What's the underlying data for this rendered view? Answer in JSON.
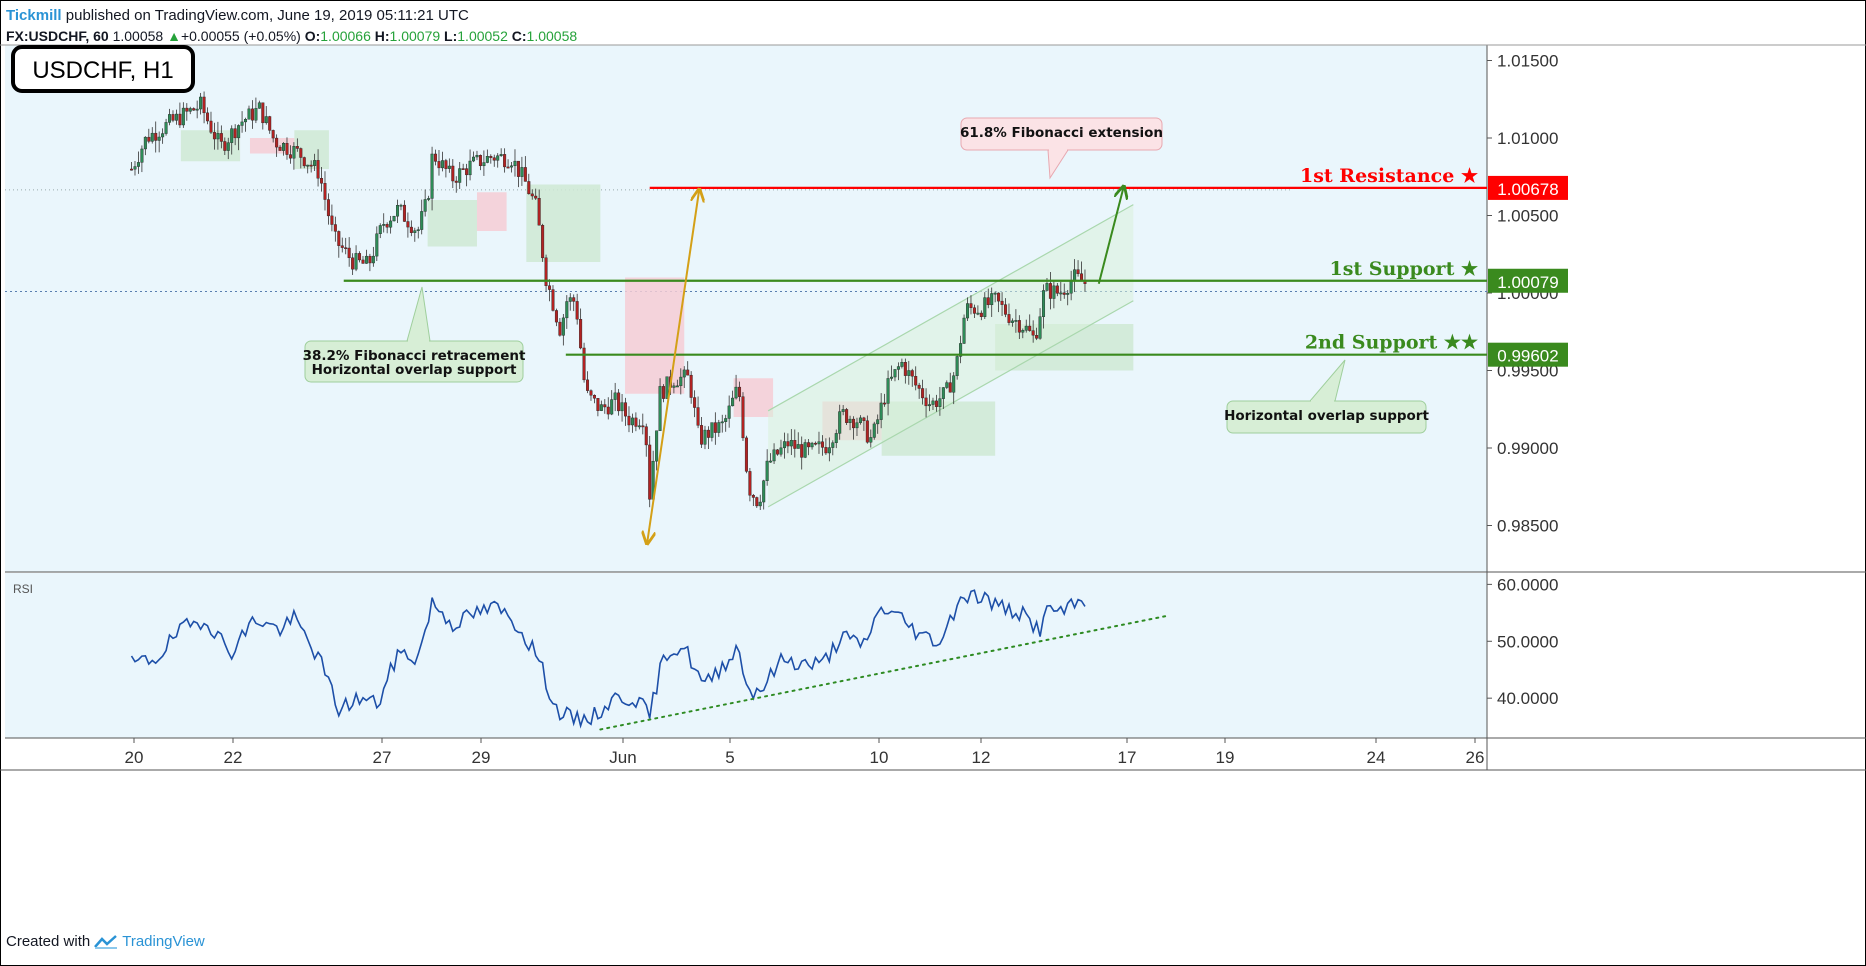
{
  "header": {
    "publisher": "Tickmill",
    "published_text": "published on TradingView.com, June 19, 2019 05:11:21 UTC",
    "symbol": "FX:USDCHF, 60",
    "last": "1.00058",
    "change": "+0.00055 (+0.05%)",
    "o_label": "O:",
    "o_value": "1.00066",
    "h_label": "H:",
    "h_value": "1.00079",
    "l_label": "L:",
    "l_value": "1.00052",
    "c_label": "C:",
    "c_value": "1.00058"
  },
  "footer": {
    "created_with": "Created with",
    "brand": "TradingView"
  },
  "colors": {
    "plot_bg": "#eaf6fc",
    "candle_up": "#2e8b57",
    "candle_down": "#b22222",
    "resistance": "#ff0000",
    "support": "#3a8a1e",
    "fib_arrow": "#d4a017",
    "rsi_line": "#1d4fa8",
    "rsi_trend": "#2e8b22",
    "cloud_bear": "#f6cdd5",
    "cloud_bull": "#cfe9d3"
  },
  "chart_data": {
    "type": "candlestick",
    "title": "USDCHF, H1",
    "x_ticks": [
      "20",
      "22",
      "27",
      "29",
      "Jun",
      "5",
      "10",
      "12",
      "17",
      "19",
      "24",
      "26"
    ],
    "y_ticks": [
      "1.01500",
      "1.01000",
      "1.00500",
      "1.00000",
      "0.99500",
      "0.99000",
      "0.98500"
    ],
    "ylim": [
      0.982,
      1.016
    ],
    "price_path": [
      {
        "t": 0,
        "p": 1.008
      },
      {
        "t": 0.3,
        "p": 1.01
      },
      {
        "t": 0.9,
        "p": 1.0112
      },
      {
        "t": 1.4,
        "p": 1.0121
      },
      {
        "t": 1.8,
        "p": 1.0094
      },
      {
        "t": 2.2,
        "p": 1.011
      },
      {
        "t": 2.6,
        "p": 1.0119
      },
      {
        "t": 2.9,
        "p": 1.0098
      },
      {
        "t": 3.4,
        "p": 1.009
      },
      {
        "t": 3.8,
        "p": 1.0078
      },
      {
        "t": 4.1,
        "p": 1.0035
      },
      {
        "t": 4.5,
        "p": 1.002
      },
      {
        "t": 4.8,
        "p": 1.0018
      },
      {
        "t": 5.1,
        "p": 1.0045
      },
      {
        "t": 5.4,
        "p": 1.0054
      },
      {
        "t": 5.8,
        "p": 1.004
      },
      {
        "t": 6.0,
        "p": 1.006
      },
      {
        "t": 6.1,
        "p": 1.009
      },
      {
        "t": 6.5,
        "p": 1.0074
      },
      {
        "t": 6.9,
        "p": 1.0083
      },
      {
        "t": 7.3,
        "p": 1.0088
      },
      {
        "t": 7.7,
        "p": 1.0087
      },
      {
        "t": 8.0,
        "p": 1.007
      },
      {
        "t": 8.2,
        "p": 1.0055
      },
      {
        "t": 8.4,
        "p": 1.001
      },
      {
        "t": 8.7,
        "p": 0.9975
      },
      {
        "t": 8.8,
        "p": 0.9995
      },
      {
        "t": 9.0,
        "p": 0.9995
      },
      {
        "t": 9.2,
        "p": 0.9935
      },
      {
        "t": 9.5,
        "p": 0.9925
      },
      {
        "t": 9.8,
        "p": 0.993
      },
      {
        "t": 10.1,
        "p": 0.9918
      },
      {
        "t": 10.4,
        "p": 0.992
      },
      {
        "t": 10.5,
        "p": 0.987
      },
      {
        "t": 10.7,
        "p": 0.9935
      },
      {
        "t": 11.0,
        "p": 0.9945
      },
      {
        "t": 11.3,
        "p": 0.9945
      },
      {
        "t": 11.5,
        "p": 0.9905
      },
      {
        "t": 11.7,
        "p": 0.991
      },
      {
        "t": 12.0,
        "p": 0.9915
      },
      {
        "t": 12.3,
        "p": 0.994
      },
      {
        "t": 12.5,
        "p": 0.9875
      },
      {
        "t": 12.7,
        "p": 0.9865
      },
      {
        "t": 12.9,
        "p": 0.989
      },
      {
        "t": 13.3,
        "p": 0.9903
      },
      {
        "t": 13.7,
        "p": 0.9897
      },
      {
        "t": 14.1,
        "p": 0.9902
      },
      {
        "t": 14.4,
        "p": 0.9922
      },
      {
        "t": 14.7,
        "p": 0.9918
      },
      {
        "t": 15.0,
        "p": 0.9905
      },
      {
        "t": 15.3,
        "p": 0.9938
      },
      {
        "t": 15.6,
        "p": 0.9955
      },
      {
        "t": 15.9,
        "p": 0.994
      },
      {
        "t": 16.2,
        "p": 0.9928
      },
      {
        "t": 16.5,
        "p": 0.9935
      },
      {
        "t": 16.7,
        "p": 0.995
      },
      {
        "t": 16.9,
        "p": 0.999
      },
      {
        "t": 17.2,
        "p": 0.999
      },
      {
        "t": 17.5,
        "p": 0.9995
      },
      {
        "t": 17.8,
        "p": 0.9985
      },
      {
        "t": 18.1,
        "p": 0.9978
      },
      {
        "t": 18.3,
        "p": 0.997
      },
      {
        "t": 18.5,
        "p": 1.0002
      },
      {
        "t": 18.8,
        "p": 1.0
      },
      {
        "t": 19.1,
        "p": 1.001
      },
      {
        "t": 19.35,
        "p": 1.0006
      }
    ],
    "ichimoku_cloud": {
      "bearish_segments": [
        [
          2.4,
          3.3,
          1.01,
          1.009
        ],
        [
          7.0,
          7.6,
          1.0065,
          1.004
        ],
        [
          10.0,
          11.2,
          1.001,
          0.9935
        ],
        [
          12.2,
          13.0,
          0.9945,
          0.992
        ],
        [
          14.0,
          15.2,
          0.993,
          0.9905
        ]
      ],
      "bullish_segments": [
        [
          1.0,
          2.2,
          1.0105,
          1.0085
        ],
        [
          3.3,
          4.0,
          1.0105,
          1.008
        ],
        [
          6.0,
          7.0,
          1.006,
          1.003
        ],
        [
          8.0,
          9.5,
          1.007,
          1.002
        ],
        [
          15.2,
          17.5,
          0.993,
          0.9895
        ],
        [
          17.5,
          20.3,
          0.998,
          0.995
        ]
      ]
    },
    "channel": {
      "lower": [
        [
          12.9,
          0.9862
        ],
        [
          20.3,
          0.9995
        ]
      ],
      "upper": [
        [
          12.9,
          0.9924
        ],
        [
          20.3,
          1.0057
        ]
      ]
    },
    "levels": [
      {
        "name": "1st Resistance",
        "label": "1st Resistance ★",
        "value": 1.00678,
        "value_label": "1.00678",
        "color": "#ff0000",
        "x_start": 10.5
      },
      {
        "name": "1st Support",
        "label": "1st Support ★",
        "value": 1.00079,
        "value_label": "1.00079",
        "color": "#3a8a1e",
        "x_start": 4.3
      },
      {
        "name": "2nd Support",
        "label": "2nd Support ★★",
        "value": 0.99602,
        "value_label": "0.99602",
        "color": "#3a8a1e",
        "x_start": 8.8
      }
    ],
    "fib_arrow": {
      "from": [
        10.45,
        0.9852
      ],
      "to": [
        11.5,
        1.0066
      ]
    },
    "target_arrow": {
      "from": [
        19.6,
        1.0006
      ],
      "to": [
        20.1,
        1.0068
      ]
    },
    "annotations": [
      {
        "id": "fib-ext",
        "lines": [
          "61.8% Fibonacci extension"
        ],
        "style": "red"
      },
      {
        "id": "fib-ret",
        "lines": [
          "38.2% Fibonacci retracement",
          "Horizontal overlap support"
        ],
        "style": "green"
      },
      {
        "id": "overlap",
        "lines": [
          "Horizontal overlap support"
        ],
        "style": "green"
      }
    ],
    "rsi": {
      "label": "RSI",
      "y_ticks": [
        "60.0000",
        "50.0000",
        "40.0000"
      ],
      "ylim": [
        33,
        62
      ],
      "path": [
        {
          "t": 0,
          "p": 46
        },
        {
          "t": 0.5,
          "p": 47
        },
        {
          "t": 1.0,
          "p": 52
        },
        {
          "t": 1.5,
          "p": 54
        },
        {
          "t": 2.0,
          "p": 48
        },
        {
          "t": 2.5,
          "p": 54
        },
        {
          "t": 3.0,
          "p": 52
        },
        {
          "t": 3.3,
          "p": 54
        },
        {
          "t": 3.8,
          "p": 47
        },
        {
          "t": 4.2,
          "p": 38
        },
        {
          "t": 4.6,
          "p": 40
        },
        {
          "t": 5.0,
          "p": 39
        },
        {
          "t": 5.4,
          "p": 48
        },
        {
          "t": 5.8,
          "p": 47
        },
        {
          "t": 6.1,
          "p": 57
        },
        {
          "t": 6.5,
          "p": 53
        },
        {
          "t": 7.0,
          "p": 55
        },
        {
          "t": 7.4,
          "p": 56
        },
        {
          "t": 7.8,
          "p": 53
        },
        {
          "t": 8.2,
          "p": 48
        },
        {
          "t": 8.6,
          "p": 38
        },
        {
          "t": 9.0,
          "p": 36
        },
        {
          "t": 9.4,
          "p": 37
        },
        {
          "t": 9.8,
          "p": 40
        },
        {
          "t": 10.2,
          "p": 40
        },
        {
          "t": 10.5,
          "p": 37
        },
        {
          "t": 10.8,
          "p": 48
        },
        {
          "t": 11.2,
          "p": 49
        },
        {
          "t": 11.6,
          "p": 42
        },
        {
          "t": 12.0,
          "p": 46
        },
        {
          "t": 12.3,
          "p": 49
        },
        {
          "t": 12.5,
          "p": 41
        },
        {
          "t": 12.8,
          "p": 42
        },
        {
          "t": 13.2,
          "p": 47
        },
        {
          "t": 13.6,
          "p": 46
        },
        {
          "t": 14.0,
          "p": 46
        },
        {
          "t": 14.4,
          "p": 51
        },
        {
          "t": 14.8,
          "p": 49
        },
        {
          "t": 15.2,
          "p": 56
        },
        {
          "t": 15.6,
          "p": 54
        },
        {
          "t": 16.0,
          "p": 51
        },
        {
          "t": 16.4,
          "p": 50
        },
        {
          "t": 16.8,
          "p": 58
        },
        {
          "t": 17.2,
          "p": 58
        },
        {
          "t": 17.6,
          "p": 56
        },
        {
          "t": 18.0,
          "p": 55
        },
        {
          "t": 18.4,
          "p": 52
        },
        {
          "t": 18.6,
          "p": 56
        },
        {
          "t": 18.9,
          "p": 55
        },
        {
          "t": 19.2,
          "p": 57
        },
        {
          "t": 19.35,
          "p": 56
        }
      ],
      "trendline": [
        [
          9.5,
          34.5
        ],
        [
          21.0,
          54.5
        ]
      ]
    }
  }
}
